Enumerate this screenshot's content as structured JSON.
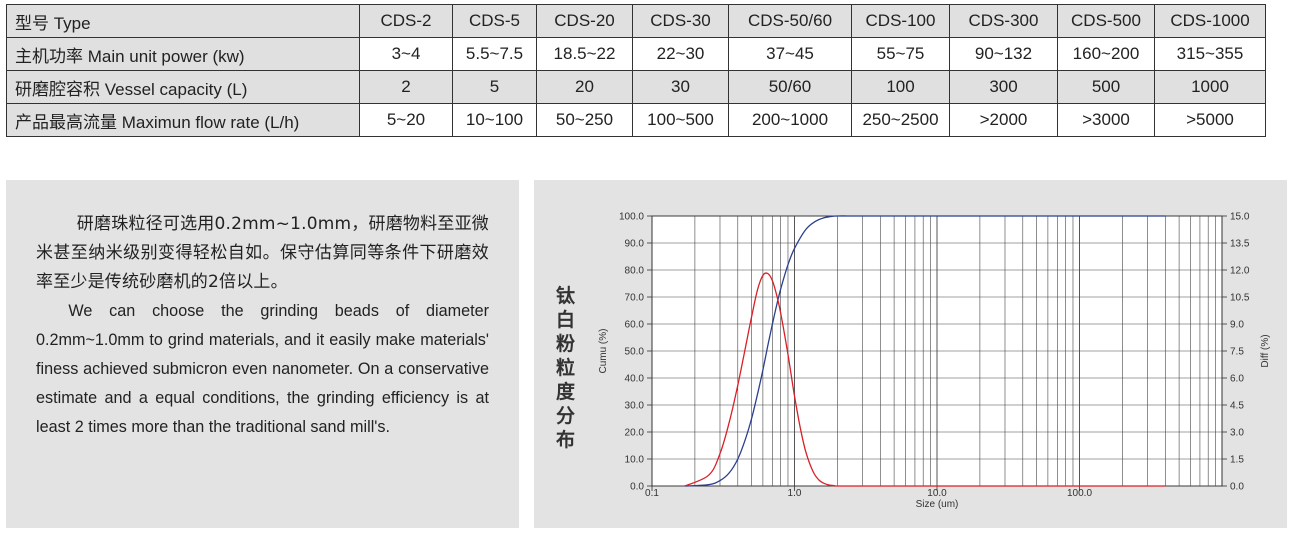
{
  "table": {
    "rows": [
      {
        "label": "型号 Type",
        "cells": [
          "CDS-2",
          "CDS-5",
          "CDS-20",
          "CDS-30",
          "CDS-50/60",
          "CDS-100",
          "CDS-300",
          "CDS-500",
          "CDS-1000"
        ]
      },
      {
        "label": "主机功率 Main unit power (kw)",
        "cells": [
          "3~4",
          "5.5~7.5",
          "18.5~22",
          "22~30",
          "37~45",
          "55~75",
          "90~132",
          "160~200",
          "315~355"
        ]
      },
      {
        "label": "研磨腔容积 Vessel capacity (L)",
        "cells": [
          "2",
          "5",
          "20",
          "30",
          "50/60",
          "100",
          "300",
          "500",
          "1000"
        ]
      },
      {
        "label": "产品最高流量 Maximun flow rate (L/h)",
        "cells": [
          "5~20",
          "10~100",
          "50~250",
          "100~500",
          "200~1000",
          "250~2500",
          ">2000",
          ">3000",
          ">5000"
        ]
      }
    ]
  },
  "text": {
    "cn": "研磨珠粒径可选用0.2mm~1.0mm，研磨物料至亚微米甚至纳米级别变得轻松自如。保守估算同等条件下研磨效率至少是传统砂磨机的2倍以上。",
    "en": "We can choose the grinding beads of diameter 0.2mm~1.0mm to grind materials, and it easily make materials' finess achieved submicron even nanometer. On a conservative estimate and a equal conditions, the grinding efficiency is at least 2 times more than the traditional sand mill's."
  },
  "chart_title": "钛白粉粒度分布",
  "chart_data": {
    "type": "line",
    "xlabel": "Size (um)",
    "ylabel_left": "Cumu (%)",
    "ylabel_right": "Diff (%)",
    "x_scale": "log",
    "xlim": [
      0.1,
      1000
    ],
    "x_ticks": [
      "0.1",
      "1.0",
      "10.0",
      "100.0"
    ],
    "y_left_ticks": [
      "0.0",
      "10.0",
      "20.0",
      "30.0",
      "40.0",
      "50.0",
      "60.0",
      "70.0",
      "80.0",
      "90.0",
      "100.0"
    ],
    "y_right_ticks": [
      "0.0",
      "1.5",
      "3.0",
      "4.5",
      "6.0",
      "7.5",
      "9.0",
      "10.5",
      "12.0",
      "13.5",
      "15.0"
    ],
    "ylim_left": [
      0,
      100
    ],
    "ylim_right": [
      0,
      15
    ],
    "grid": true,
    "series": [
      {
        "axis": "left",
        "color": "#2b3f8f",
        "x": [
          0.17,
          0.25,
          0.3,
          0.35,
          0.4,
          0.45,
          0.5,
          0.55,
          0.6,
          0.65,
          0.7,
          0.75,
          0.8,
          0.9,
          1.0,
          1.2,
          1.4,
          1.6,
          1.8,
          2.0,
          3.0,
          10,
          100,
          400
        ],
        "y": [
          0,
          0.5,
          2,
          5,
          10,
          17,
          25,
          34,
          43,
          52,
          60,
          67,
          73,
          82,
          88,
          95,
          98,
          99.3,
          99.8,
          100,
          100,
          100,
          100,
          100
        ]
      },
      {
        "axis": "right",
        "color": "#d92027",
        "x": [
          0.17,
          0.25,
          0.3,
          0.35,
          0.4,
          0.45,
          0.5,
          0.55,
          0.6,
          0.65,
          0.7,
          0.75,
          0.8,
          0.9,
          1.0,
          1.1,
          1.2,
          1.35,
          1.5,
          1.7,
          1.9,
          2.2,
          10,
          100,
          400
        ],
        "y": [
          0,
          0.6,
          1.8,
          3.6,
          5.6,
          7.6,
          9.4,
          10.9,
          11.7,
          11.8,
          11.4,
          10.6,
          9.6,
          7.3,
          5.0,
          3.2,
          1.9,
          0.8,
          0.3,
          0.08,
          0.02,
          0,
          0,
          0,
          0
        ]
      }
    ]
  }
}
